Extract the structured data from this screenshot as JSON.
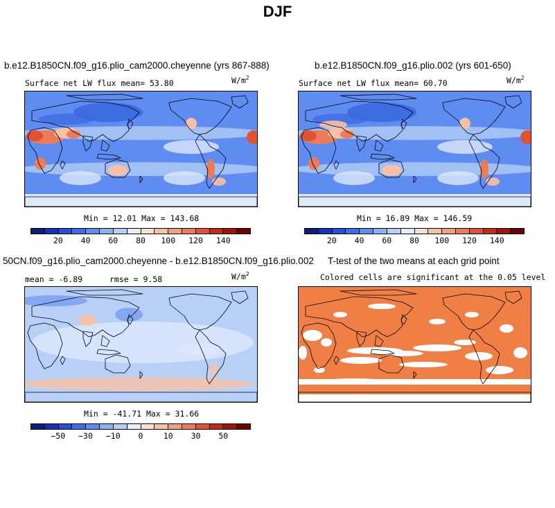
{
  "title": "DJF",
  "panels": {
    "top_left": {
      "title": "b.e12.B1850CN.f09_g16.plio_cam2000.cheyenne (yrs 867-888)",
      "subtitle": "Surface net LW flux mean=   53.80",
      "units": "W/m",
      "units_exp": "2",
      "minmax": "Min =   12.01 Max =  143.68"
    },
    "top_right": {
      "title": "b.e12.B1850CN.f09_g16.plio.002 (yrs 601-650)",
      "subtitle": "Surface net LW flux mean=   60.70",
      "units": "W/m",
      "units_exp": "2",
      "minmax": "Min =   16.89 Max =  146.59"
    },
    "bottom_left": {
      "title": "50CN.f09_g16.plio_cam2000.cheyenne - b.e12.B1850CN.f09_g16.plio.002",
      "subtitle_mean": "mean =  -6.89",
      "subtitle_rmse": "rmse =   9.58",
      "units": "W/m",
      "units_exp": "2",
      "minmax": "Min = -41.71 Max =  31.66"
    },
    "bottom_right": {
      "title": "T-test of the two means at each grid point",
      "subtitle": "Colored cells are significant at the 0.05 level"
    }
  },
  "colorbar_abs": {
    "labels": [
      "20",
      "40",
      "60",
      "80",
      "100",
      "120",
      "140"
    ],
    "colors": [
      "#0a1e80",
      "#1632b8",
      "#2350d8",
      "#3b6ee8",
      "#5f8cf0",
      "#8cb0f4",
      "#b8d0f8",
      "#e6eefc",
      "#fbe0d2",
      "#f8c0a4",
      "#f4a07c",
      "#ec7c58",
      "#e05232",
      "#c42c14",
      "#a01408",
      "#6e0000"
    ]
  },
  "colorbar_diff": {
    "labels": [
      "−50",
      "−30",
      "−10",
      "0",
      "10",
      "30",
      "50"
    ],
    "colors": [
      "#0a1e80",
      "#1632b8",
      "#2350d8",
      "#3b6ee8",
      "#5f8cf0",
      "#8cb0f4",
      "#b8d0f8",
      "#e6eefc",
      "#fbe0d2",
      "#f8c0a4",
      "#f4a07c",
      "#ec7c58",
      "#e05232",
      "#c42c14",
      "#a01408",
      "#6e0000"
    ]
  },
  "map_colors": {
    "ocean_low": "#3b68e0",
    "ocean_mid": "#5f8cf0",
    "ocean_light": "#a9c6f4",
    "pale": "#dde8fb",
    "warm_light": "#f8c0a4",
    "warm": "#ec7c58",
    "hot": "#e05232",
    "diff_base": "#b8d0f8",
    "diff_light": "#dde8fb",
    "diff_warm": "#f8c0a4",
    "ttest_fill": "#f07f45"
  }
}
